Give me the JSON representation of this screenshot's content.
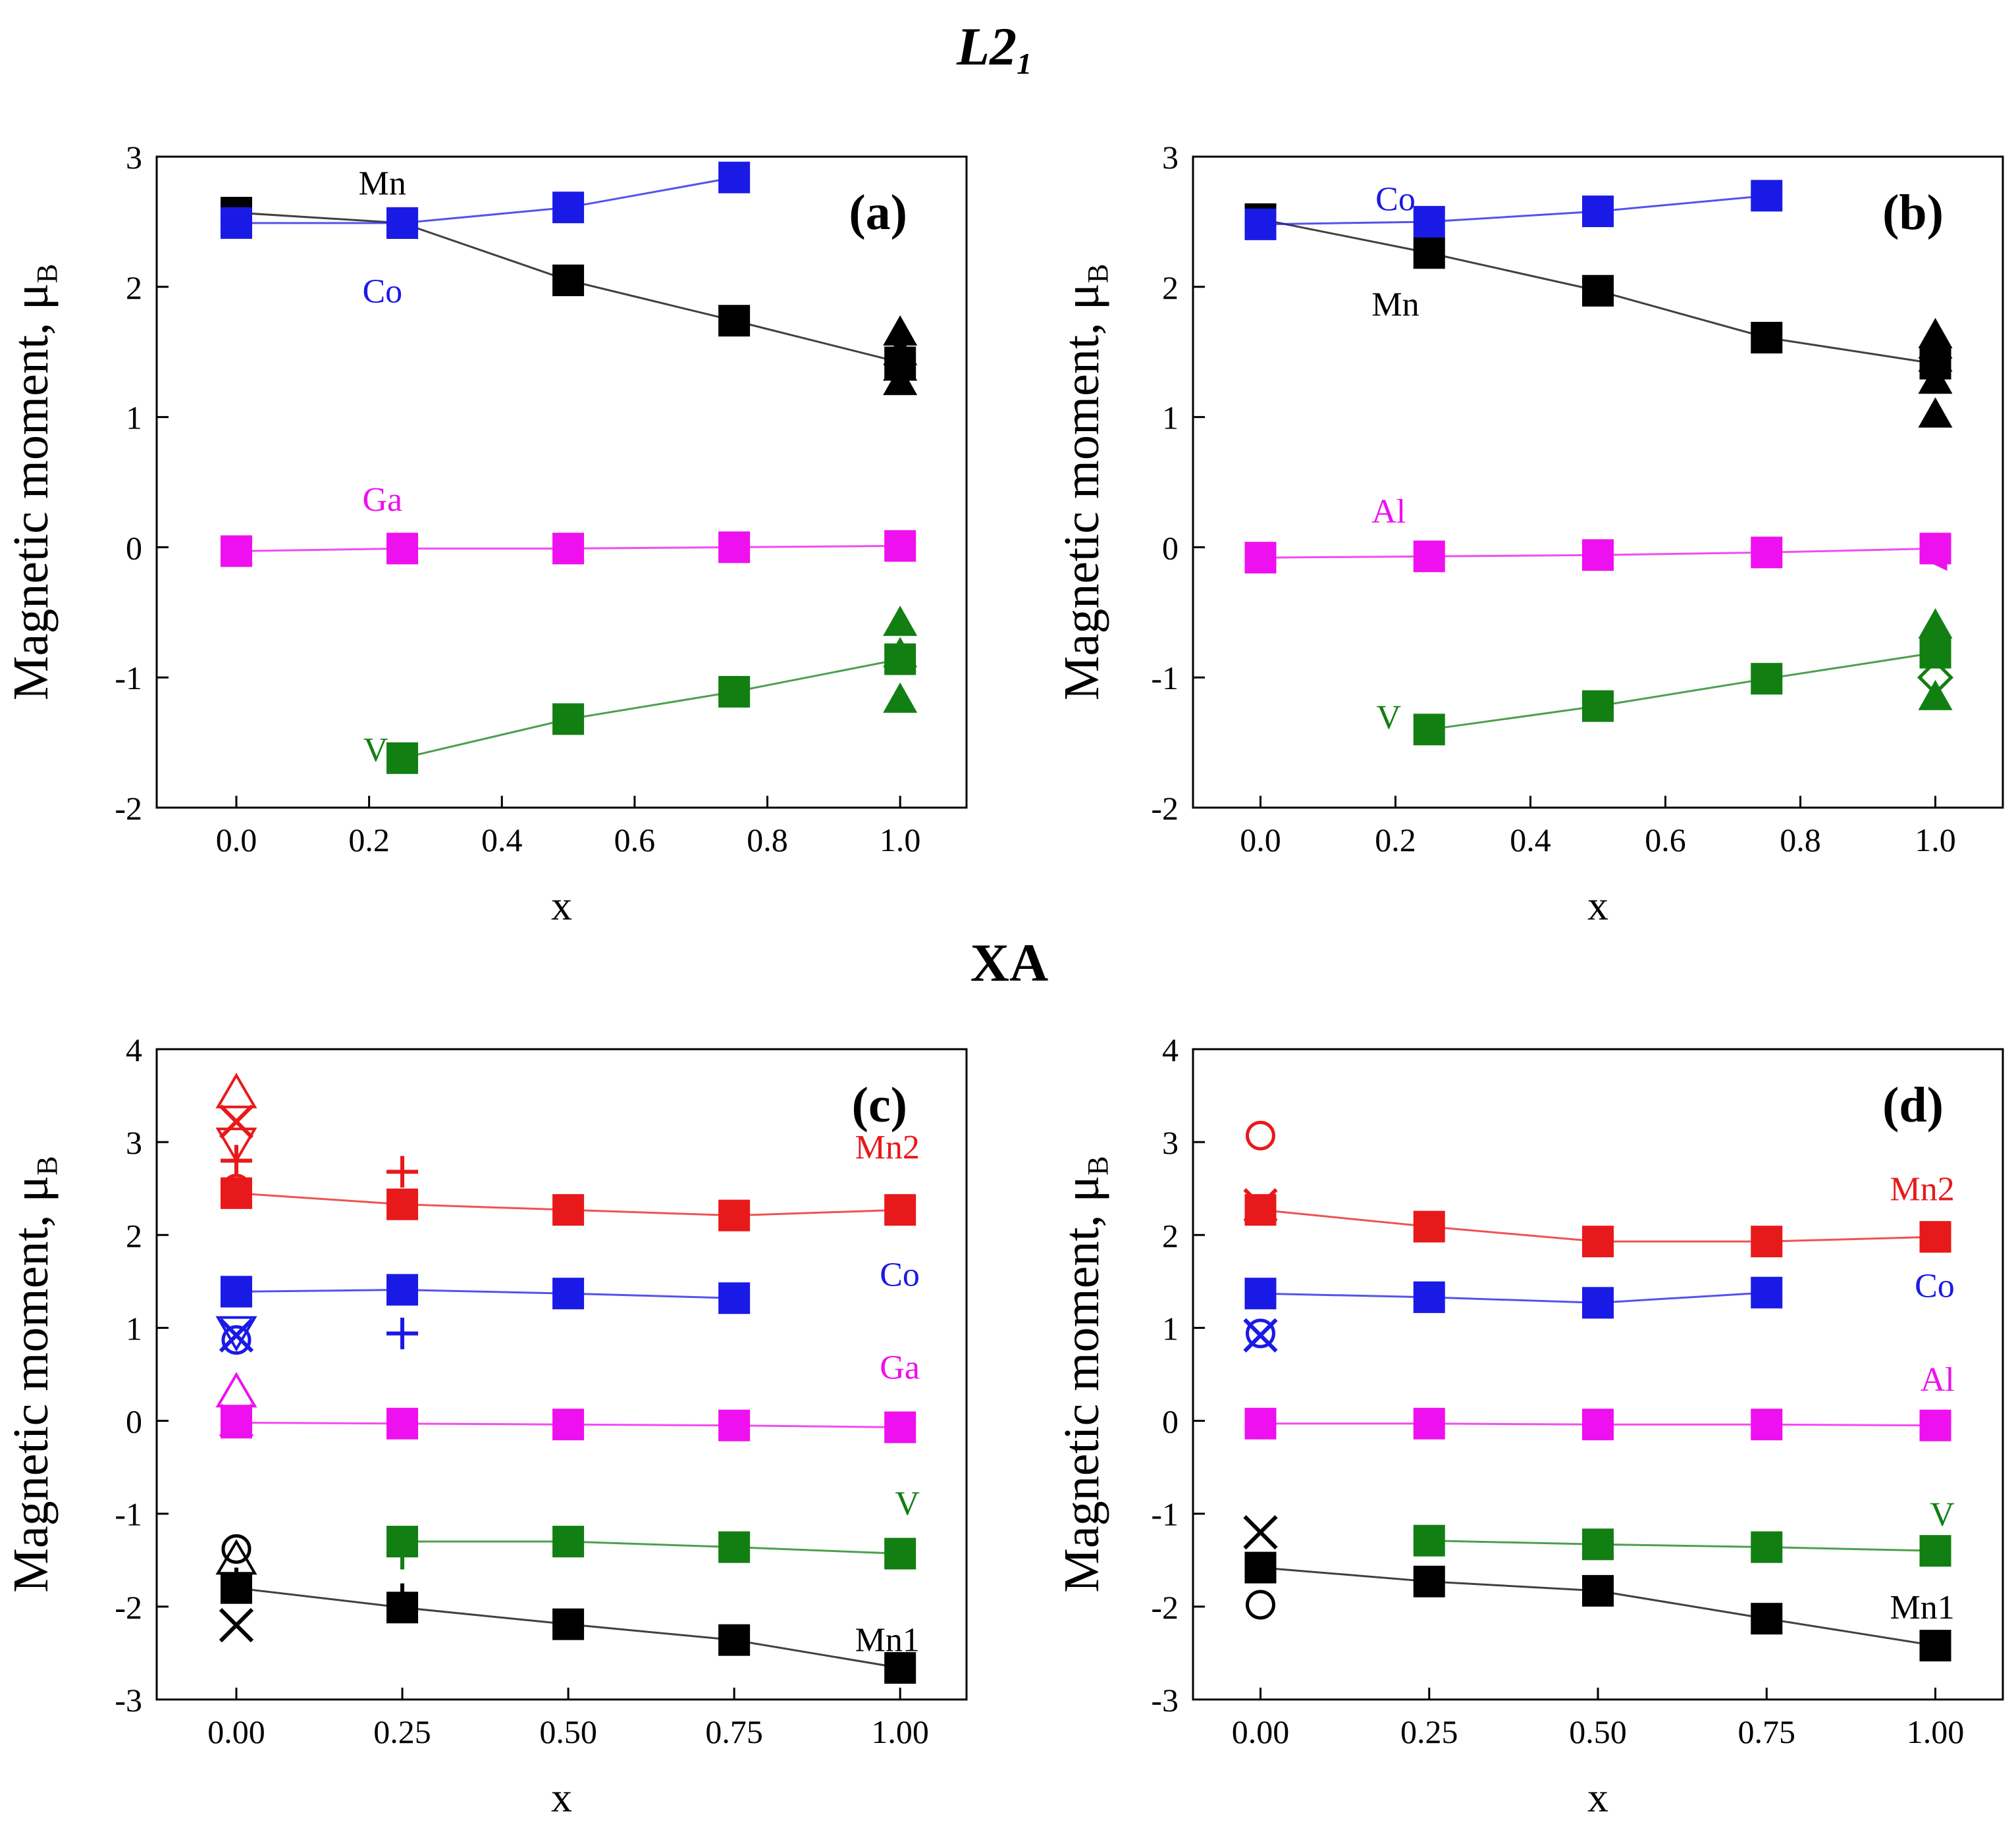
{
  "titles": {
    "l21": "L2",
    "l21_sub": "1",
    "xa": "XA"
  },
  "colors": {
    "Mn": "#000000",
    "Mn1": "#000000",
    "Mn2": "#e8191a",
    "Co": "#1a1ae6",
    "Ga": "#ee10ee",
    "Al": "#ee10ee",
    "V": "#127f12",
    "axis": "#000000"
  },
  "chart_data": [
    {
      "id": "a",
      "type": "line",
      "panel_label": "(a)",
      "xlabel": "x",
      "ylabel": "Magnetic moment, μ",
      "ylabel_sub": "B",
      "xlim": [
        -0.12,
        1.1
      ],
      "ylim": [
        -2,
        3
      ],
      "xticks": [
        0.0,
        0.2,
        0.4,
        0.6,
        0.8,
        1.0
      ],
      "xtick_labels": [
        "0.0",
        "0.2",
        "0.4",
        "0.6",
        "0.8",
        "1.0"
      ],
      "yticks": [
        -2,
        -1,
        0,
        1,
        2,
        3
      ],
      "ytick_labels": [
        "-2",
        "-1",
        "0",
        "1",
        "2",
        "3"
      ],
      "series": [
        {
          "name": "Mn",
          "color": "#000000",
          "x": [
            0,
            0.25,
            0.5,
            0.75,
            1.0
          ],
          "values": [
            2.57,
            2.49,
            2.05,
            1.74,
            1.42
          ]
        },
        {
          "name": "Co",
          "color": "#1a1ae6",
          "x": [
            0,
            0.25,
            0.5,
            0.75
          ],
          "values": [
            2.49,
            2.49,
            2.61,
            2.84
          ]
        },
        {
          "name": "Ga",
          "color": "#ee10ee",
          "x": [
            0,
            0.25,
            0.5,
            0.75,
            1.0
          ],
          "values": [
            -0.03,
            -0.01,
            -0.01,
            0.0,
            0.01
          ]
        },
        {
          "name": "V",
          "color": "#127f12",
          "x": [
            0.25,
            0.5,
            0.75,
            1.0
          ],
          "values": [
            -1.62,
            -1.32,
            -1.11,
            -0.86
          ]
        }
      ],
      "references": [
        {
          "series": "Mn",
          "marker": "triangle",
          "x": 1.0,
          "y": 1.65
        },
        {
          "series": "Mn",
          "marker": "triangle",
          "x": 1.0,
          "y": 1.5
        },
        {
          "series": "Mn",
          "marker": "triangle",
          "x": 1.0,
          "y": 1.38
        },
        {
          "series": "Mn",
          "marker": "triangle",
          "x": 1.0,
          "y": 1.27
        },
        {
          "series": "V",
          "marker": "triangle",
          "x": 1.0,
          "y": -0.58
        },
        {
          "series": "V",
          "marker": "triangle",
          "x": 1.0,
          "y": -0.82
        },
        {
          "series": "V",
          "marker": "triangle",
          "x": 1.0,
          "y": -1.17
        }
      ],
      "annotations": [
        {
          "text": "Mn",
          "series": "Mn",
          "x": 0.22,
          "y": 2.8
        },
        {
          "text": "Co",
          "series": "Co",
          "x": 0.22,
          "y": 1.97
        },
        {
          "text": "Ga",
          "series": "Ga",
          "x": 0.22,
          "y": 0.37
        },
        {
          "text": "V",
          "series": "V",
          "x": 0.21,
          "y": -1.55
        }
      ]
    },
    {
      "id": "b",
      "type": "line",
      "panel_label": "(b)",
      "xlabel": "x",
      "ylabel": "Magnetic moment, μ",
      "ylabel_sub": "B",
      "xlim": [
        -0.1,
        1.1
      ],
      "ylim": [
        -2,
        3
      ],
      "xticks": [
        0.0,
        0.2,
        0.4,
        0.6,
        0.8,
        1.0
      ],
      "xtick_labels": [
        "0.0",
        "0.2",
        "0.4",
        "0.6",
        "0.8",
        "1.0"
      ],
      "yticks": [
        -2,
        -1,
        0,
        1,
        2,
        3
      ],
      "ytick_labels": [
        "-2",
        "-1",
        "0",
        "1",
        "2",
        "3"
      ],
      "series": [
        {
          "name": "Mn",
          "color": "#000000",
          "x": [
            0,
            0.25,
            0.5,
            0.75,
            1.0
          ],
          "values": [
            2.52,
            2.26,
            1.97,
            1.61,
            1.41
          ]
        },
        {
          "name": "Co",
          "color": "#1a1ae6",
          "x": [
            0,
            0.25,
            0.5,
            0.75
          ],
          "values": [
            2.48,
            2.5,
            2.58,
            2.7
          ]
        },
        {
          "name": "Al",
          "color": "#ee10ee",
          "x": [
            0,
            0.25,
            0.5,
            0.75,
            1.0
          ],
          "values": [
            -0.08,
            -0.07,
            -0.06,
            -0.04,
            -0.01
          ]
        },
        {
          "name": "V",
          "color": "#127f12",
          "x": [
            0.25,
            0.5,
            0.75,
            1.0
          ],
          "values": [
            -1.4,
            -1.22,
            -1.01,
            -0.81
          ]
        }
      ],
      "references": [
        {
          "series": "Mn",
          "marker": "triangle",
          "x": 1.0,
          "y": 1.63
        },
        {
          "series": "Mn",
          "marker": "triangle",
          "x": 1.0,
          "y": 1.55
        },
        {
          "series": "Mn",
          "marker": "triangle",
          "x": 1.0,
          "y": 1.45
        },
        {
          "series": "Mn",
          "marker": "triangle",
          "x": 1.0,
          "y": 1.28
        },
        {
          "series": "Mn",
          "marker": "triangle",
          "x": 1.0,
          "y": 1.02
        },
        {
          "series": "Al",
          "marker": "triangle-left",
          "x": 1.0,
          "y": -0.08
        },
        {
          "series": "V",
          "marker": "triangle",
          "x": 1.0,
          "y": -0.6
        },
        {
          "series": "V",
          "marker": "diamond",
          "x": 1.0,
          "y": -1.0
        },
        {
          "series": "V",
          "marker": "triangle",
          "x": 1.0,
          "y": -1.15
        }
      ],
      "annotations": [
        {
          "text": "Co",
          "series": "Co",
          "x": 0.2,
          "y": 2.68
        },
        {
          "text": "Mn",
          "series": "Mn",
          "x": 0.2,
          "y": 1.87
        },
        {
          "text": "Al",
          "series": "Al",
          "x": 0.19,
          "y": 0.28
        },
        {
          "text": "V",
          "series": "V",
          "x": 0.19,
          "y": -1.3
        }
      ]
    },
    {
      "id": "c",
      "type": "line",
      "panel_label": "(c)",
      "xlabel": "x",
      "ylabel": "Magnetic moment, μ",
      "ylabel_sub": "B",
      "xlim": [
        -0.12,
        1.1
      ],
      "ylim": [
        -3,
        4
      ],
      "xticks": [
        0.0,
        0.25,
        0.5,
        0.75,
        1.0
      ],
      "xtick_labels": [
        "0.00",
        "0.25",
        "0.50",
        "0.75",
        "1.00"
      ],
      "yticks": [
        -3,
        -2,
        -1,
        0,
        1,
        2,
        3,
        4
      ],
      "ytick_labels": [
        "-3",
        "-2",
        "-1",
        "0",
        "1",
        "2",
        "3",
        "4"
      ],
      "series": [
        {
          "name": "Mn2",
          "color": "#e8191a",
          "x": [
            0,
            0.25,
            0.5,
            0.75,
            1.0
          ],
          "values": [
            2.45,
            2.33,
            2.27,
            2.21,
            2.27
          ]
        },
        {
          "name": "Co",
          "color": "#1a1ae6",
          "x": [
            0,
            0.25,
            0.5,
            0.75
          ],
          "values": [
            1.39,
            1.41,
            1.37,
            1.32
          ]
        },
        {
          "name": "Ga",
          "color": "#ee10ee",
          "x": [
            0,
            0.25,
            0.5,
            0.75,
            1.0
          ],
          "values": [
            -0.02,
            -0.03,
            -0.04,
            -0.05,
            -0.07
          ]
        },
        {
          "name": "V",
          "color": "#127f12",
          "x": [
            0.25,
            0.5,
            0.75,
            1.0
          ],
          "values": [
            -1.3,
            -1.3,
            -1.36,
            -1.43
          ]
        },
        {
          "name": "Mn1",
          "color": "#000000",
          "x": [
            0,
            0.25,
            0.5,
            0.75,
            1.0
          ],
          "values": [
            -1.8,
            -2.01,
            -2.19,
            -2.36,
            -2.66
          ]
        }
      ],
      "references": [
        {
          "series": "Mn2",
          "marker": "triangle-open",
          "x": 0.0,
          "y": 3.52
        },
        {
          "series": "Mn2",
          "marker": "cross",
          "x": 0.0,
          "y": 3.22
        },
        {
          "series": "Mn2",
          "marker": "triangle-down-open",
          "x": 0.0,
          "y": 3.0
        },
        {
          "series": "Mn2",
          "marker": "plus",
          "x": 0.0,
          "y": 2.8
        },
        {
          "series": "Mn2",
          "marker": "circle-open",
          "x": 0.0,
          "y": 2.5
        },
        {
          "series": "Mn2",
          "marker": "plus",
          "x": 0.25,
          "y": 2.68
        },
        {
          "series": "Co",
          "marker": "triangle-down-open",
          "x": 0.0,
          "y": 0.97
        },
        {
          "series": "Co",
          "marker": "cross",
          "x": 0.0,
          "y": 0.92
        },
        {
          "series": "Co",
          "marker": "circle-open",
          "x": 0.0,
          "y": 0.87
        },
        {
          "series": "Co",
          "marker": "plus",
          "x": 0.25,
          "y": 0.94
        },
        {
          "series": "Ga",
          "marker": "triangle-open",
          "x": 0.0,
          "y": 0.3
        },
        {
          "series": "Ga",
          "marker": "cross",
          "x": 0.0,
          "y": 0.0
        },
        {
          "series": "Ga",
          "marker": "circle-open",
          "x": 0.0,
          "y": -0.02
        },
        {
          "series": "V",
          "marker": "plus",
          "x": 0.25,
          "y": -1.43
        },
        {
          "series": "Mn1",
          "marker": "circle-open",
          "x": 0.0,
          "y": -1.38
        },
        {
          "series": "Mn1",
          "marker": "triangle-open",
          "x": 0.0,
          "y": -1.5
        },
        {
          "series": "Mn1",
          "marker": "plus",
          "x": 0.0,
          "y": -1.75
        },
        {
          "series": "Mn1",
          "marker": "cross",
          "x": 0.0,
          "y": -2.2
        },
        {
          "series": "Mn1",
          "marker": "plus",
          "x": 0.25,
          "y": -1.92
        }
      ],
      "annotations": [
        {
          "text": "Mn2",
          "series": "Mn2",
          "x": 0.97,
          "y": 2.95
        },
        {
          "text": "Co",
          "series": "Co",
          "x": 0.97,
          "y": 1.58
        },
        {
          "text": "Ga",
          "series": "Ga",
          "x": 0.97,
          "y": 0.58
        },
        {
          "text": "V",
          "series": "V",
          "x": 0.97,
          "y": -0.88
        },
        {
          "text": "Mn1",
          "series": "Mn1",
          "x": 0.97,
          "y": -2.35
        }
      ]
    },
    {
      "id": "d",
      "type": "line",
      "panel_label": "(d)",
      "xlabel": "x",
      "ylabel": "Magnetic moment, μ",
      "ylabel_sub": "B",
      "xlim": [
        -0.1,
        1.1
      ],
      "ylim": [
        -3,
        4
      ],
      "xticks": [
        0.0,
        0.25,
        0.5,
        0.75,
        1.0
      ],
      "xtick_labels": [
        "0.00",
        "0.25",
        "0.50",
        "0.75",
        "1.00"
      ],
      "yticks": [
        -3,
        -2,
        -1,
        0,
        1,
        2,
        3,
        4
      ],
      "ytick_labels": [
        "-3",
        "-2",
        "-1",
        "0",
        "1",
        "2",
        "3",
        "4"
      ],
      "series": [
        {
          "name": "Mn2",
          "color": "#e8191a",
          "x": [
            0,
            0.25,
            0.5,
            0.75,
            1.0
          ],
          "values": [
            2.27,
            2.09,
            1.93,
            1.93,
            1.98
          ]
        },
        {
          "name": "Co",
          "color": "#1a1ae6",
          "x": [
            0,
            0.25,
            0.5,
            0.75
          ],
          "values": [
            1.37,
            1.33,
            1.27,
            1.38
          ]
        },
        {
          "name": "Al",
          "color": "#ee10ee",
          "x": [
            0,
            0.25,
            0.5,
            0.75,
            1.0
          ],
          "values": [
            -0.03,
            -0.03,
            -0.04,
            -0.04,
            -0.05
          ]
        },
        {
          "name": "V",
          "color": "#127f12",
          "x": [
            0.25,
            0.5,
            0.75,
            1.0
          ],
          "values": [
            -1.29,
            -1.33,
            -1.36,
            -1.4
          ]
        },
        {
          "name": "Mn1",
          "color": "#000000",
          "x": [
            0,
            0.25,
            0.5,
            0.75,
            1.0
          ],
          "values": [
            -1.58,
            -1.73,
            -1.83,
            -2.13,
            -2.42
          ]
        }
      ],
      "references": [
        {
          "series": "Mn2",
          "marker": "circle-open",
          "x": 0.0,
          "y": 3.07
        },
        {
          "series": "Mn2",
          "marker": "cross",
          "x": 0.0,
          "y": 2.32
        },
        {
          "series": "Co",
          "marker": "circle-open",
          "x": 0.0,
          "y": 0.94
        },
        {
          "series": "Co",
          "marker": "cross",
          "x": 0.0,
          "y": 0.92
        },
        {
          "series": "Al",
          "marker": "circle-open",
          "x": 0.0,
          "y": -0.04
        },
        {
          "series": "Mn1",
          "marker": "cross",
          "x": 0.0,
          "y": -1.2
        },
        {
          "series": "Mn1",
          "marker": "circle-open",
          "x": 0.0,
          "y": -1.98
        }
      ],
      "annotations": [
        {
          "text": "Mn2",
          "series": "Mn2",
          "x": 0.97,
          "y": 2.5
        },
        {
          "text": "Co",
          "series": "Co",
          "x": 0.97,
          "y": 1.46
        },
        {
          "text": "Al",
          "series": "Al",
          "x": 0.97,
          "y": 0.45
        },
        {
          "text": "V",
          "series": "V",
          "x": 0.97,
          "y": -1.0
        },
        {
          "text": "Mn1",
          "series": "Mn1",
          "x": 0.97,
          "y": -2.0
        }
      ]
    }
  ]
}
